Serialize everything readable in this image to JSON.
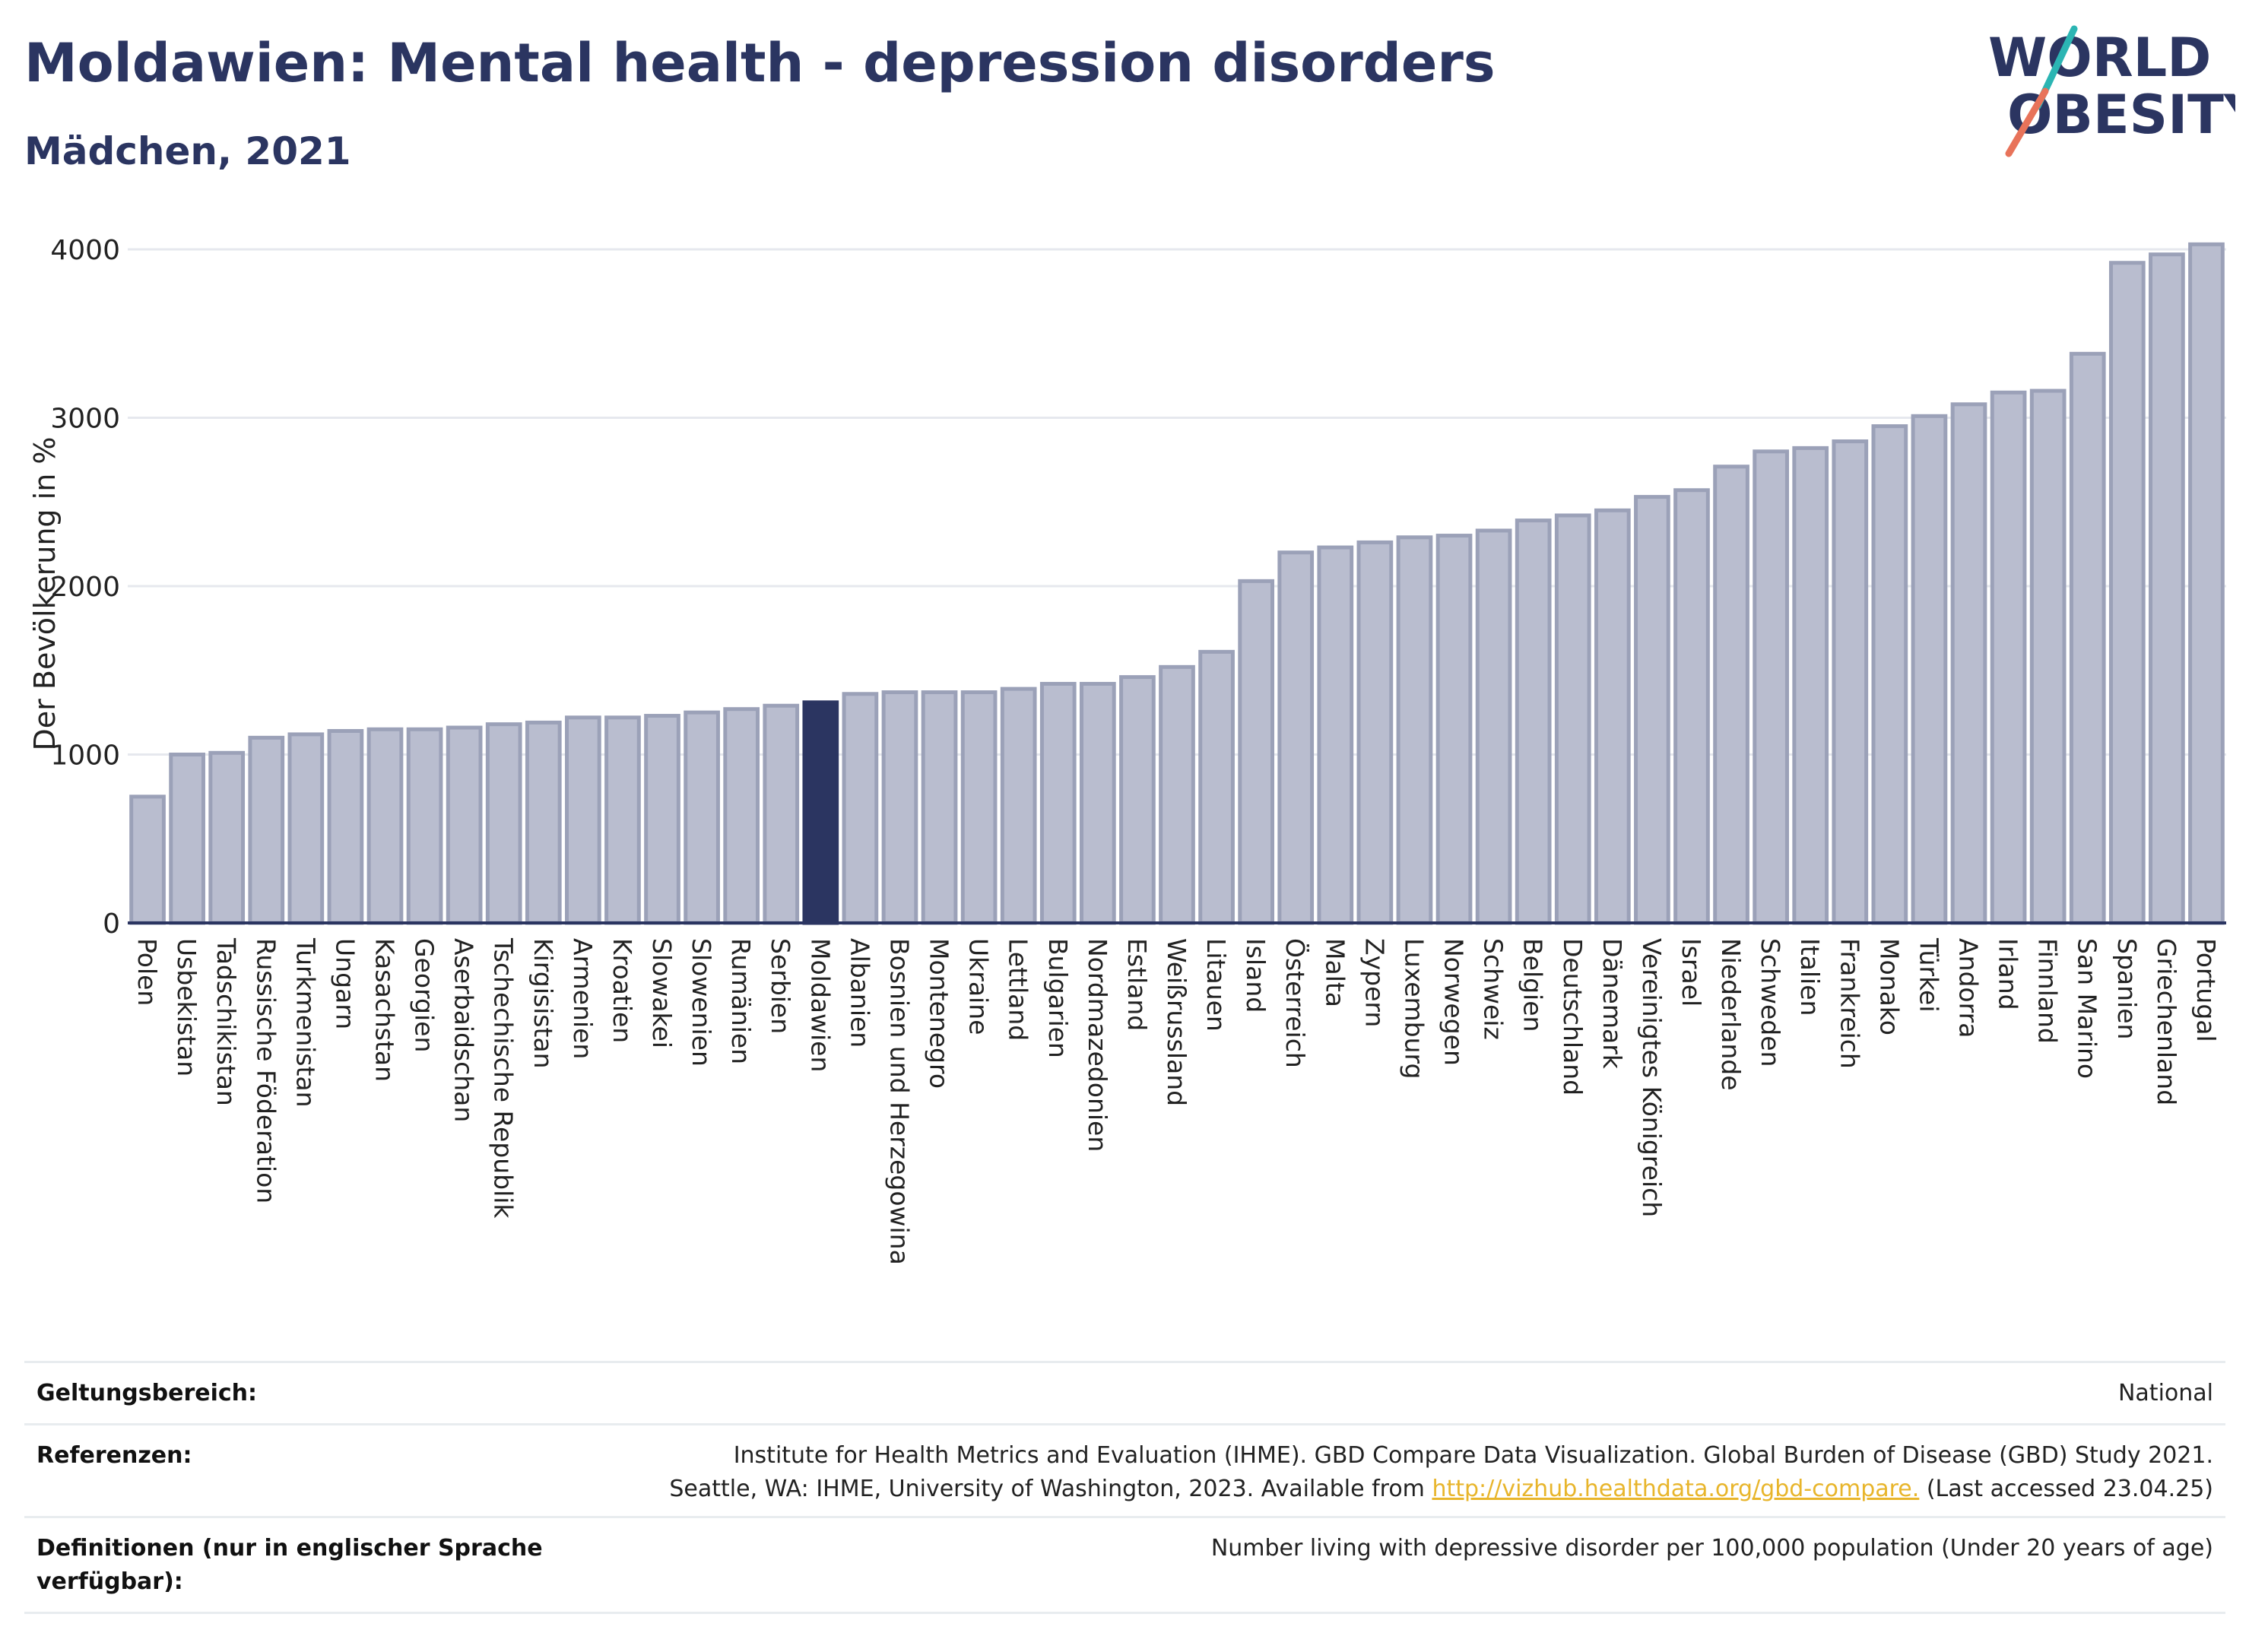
{
  "header": {
    "title": "Moldawien: Mental health - depression disorders",
    "subtitle": "Mädchen, 2021"
  },
  "logo": {
    "line1": "WORLD",
    "line2": "OBESITY",
    "accent_colors": [
      "#2bb5b3",
      "#e8735a"
    ]
  },
  "colors": {
    "bar": "#b9bdcf",
    "bar_stroke": "#9ba1b8",
    "highlight": "#2b3561",
    "grid": "#e6e8ee",
    "axis": "#2b3561"
  },
  "chart_data": {
    "type": "bar",
    "ylabel": "Der Bevölkerung in %",
    "ylim": [
      0,
      4000
    ],
    "yticks": [
      0,
      1000,
      2000,
      3000,
      4000
    ],
    "highlight": "Moldawien",
    "categories": [
      "Polen",
      "Usbekistan",
      "Tadschikistan",
      "Russische Föderation",
      "Turkmenistan",
      "Ungarn",
      "Kasachstan",
      "Georgien",
      "Aserbaidschan",
      "Tschechische Republik",
      "Kirgisistan",
      "Armenien",
      "Kroatien",
      "Slowakei",
      "Slowenien",
      "Rumänien",
      "Serbien",
      "Moldawien",
      "Albanien",
      "Bosnien und Herzegowina",
      "Montenegro",
      "Ukraine",
      "Lettland",
      "Bulgarien",
      "Nordmazedonien",
      "Estland",
      "Weißrussland",
      "Litauen",
      "Island",
      "Österreich",
      "Malta",
      "Zypern",
      "Luxemburg",
      "Norwegen",
      "Schweiz",
      "Belgien",
      "Deutschland",
      "Dänemark",
      "Vereinigtes Königreich",
      "Israel",
      "Niederlande",
      "Schweden",
      "Italien",
      "Frankreich",
      "Monako",
      "Türkei",
      "Andorra",
      "Irland",
      "Finnland",
      "San Marino",
      "Spanien",
      "Griechenland",
      "Portugal"
    ],
    "values": [
      750,
      1000,
      1010,
      1100,
      1120,
      1140,
      1150,
      1150,
      1160,
      1180,
      1190,
      1220,
      1220,
      1230,
      1250,
      1270,
      1290,
      1310,
      1360,
      1370,
      1370,
      1370,
      1390,
      1420,
      1420,
      1460,
      1520,
      1610,
      2030,
      2200,
      2230,
      2260,
      2290,
      2300,
      2330,
      2390,
      2420,
      2450,
      2530,
      2570,
      2710,
      2800,
      2820,
      2860,
      2950,
      3010,
      3080,
      3150,
      3160,
      3380,
      3920,
      3970,
      4030
    ]
  },
  "info": {
    "scope_label": "Geltungsbereich:",
    "scope_value": "National",
    "ref_label": "Referenzen:",
    "ref_line1": "Institute for Health Metrics and Evaluation (IHME). GBD Compare Data Visualization. Global Burden of Disease (GBD) Study 2021.",
    "ref_line2_pre": "Seattle, WA: IHME, University of Washington, 2023. Available from ",
    "ref_link": "http://vizhub.healthdata.org/gbd-compare.",
    "ref_line2_post": " (Last accessed 23.04.25)",
    "def_label_1": "Definitionen (nur in englischer Sprache",
    "def_label_2": "verfügbar):",
    "def_value": "Number living with depressive disorder per 100,000 population (Under 20 years of age)"
  }
}
